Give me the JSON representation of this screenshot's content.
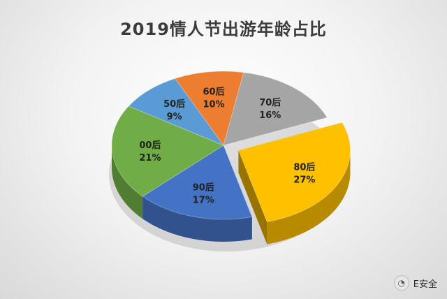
{
  "title": "2019情人节出游年龄占比",
  "watermark": {
    "icon": "wechat-icon",
    "text": "E安全"
  },
  "chart_data": {
    "type": "pie",
    "title": "2019情人节出游年龄占比",
    "slices": [
      {
        "label": "80后",
        "value": 27,
        "value_label": "27%",
        "color": "#FFC000",
        "exploded": true
      },
      {
        "label": "90后",
        "value": 17,
        "value_label": "17%",
        "color": "#4472C4",
        "exploded": false
      },
      {
        "label": "00后",
        "value": 21,
        "value_label": "21%",
        "color": "#70AD47",
        "exploded": false
      },
      {
        "label": "50后",
        "value": 9,
        "value_label": "9%",
        "color": "#5B9BD5",
        "exploded": false
      },
      {
        "label": "60后",
        "value": 10,
        "value_label": "10%",
        "color": "#ED7D31",
        "exploded": false
      },
      {
        "label": "70后",
        "value": 16,
        "value_label": "16%",
        "color": "#A5A5A5",
        "exploded": false
      }
    ]
  }
}
